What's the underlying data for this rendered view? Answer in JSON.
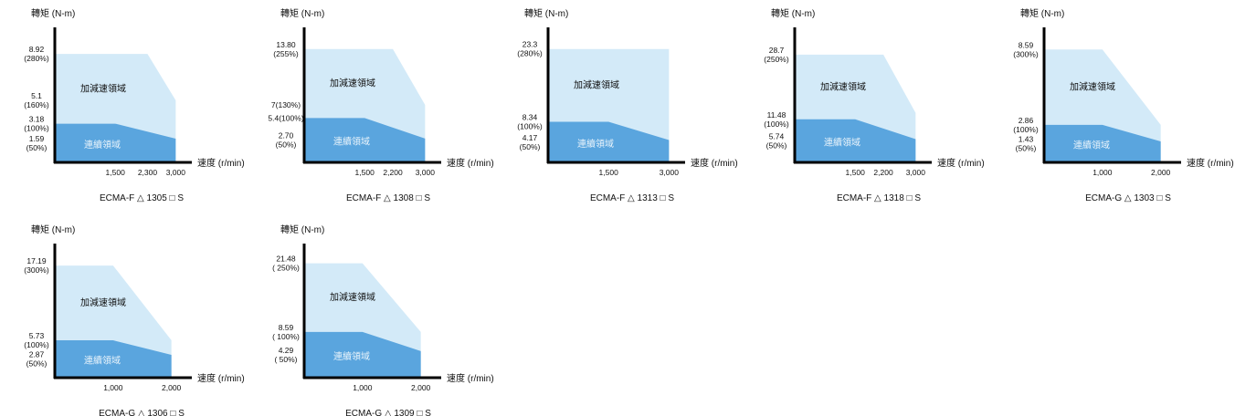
{
  "common": {
    "ylabel": "轉矩 (N-m)",
    "xlabel": "速度 (r/min)",
    "accel_region_label": "加減速領域",
    "continuous_region_label": "連續領域"
  },
  "colors": {
    "accel_region": "#d3eaf8",
    "continuous_region": "#5aa5de",
    "axis": "#000000"
  },
  "chart_data": [
    {
      "type": "area",
      "caption": "ECMA-F △ 1305 □ S",
      "xlabel": "速度 (r/min)",
      "ylabel": "轉矩 (N-m)",
      "x_ticks": [
        {
          "value": 1500,
          "label": "1,500"
        },
        {
          "value": 2300,
          "label": "2,300"
        },
        {
          "value": 3000,
          "label": "3,000"
        }
      ],
      "xlim": [
        0,
        3400
      ],
      "ylim": [
        0,
        10.8
      ],
      "y_ticks": [
        {
          "value": 8.92,
          "lines": [
            "8.92",
            "(280%)"
          ]
        },
        {
          "value": 5.1,
          "lines": [
            "5.1",
            "(160%)"
          ]
        },
        {
          "value": 3.18,
          "lines": [
            "3.18",
            "(100%)"
          ]
        },
        {
          "value": 1.59,
          "lines": [
            "1.59",
            "(50%)"
          ]
        }
      ],
      "series": [
        {
          "name": "加減速領域",
          "x": [
            0,
            2300,
            3000
          ],
          "y": [
            8.92,
            8.92,
            5.1
          ]
        },
        {
          "name": "連續領域",
          "x": [
            0,
            1500,
            3000
          ],
          "y": [
            3.18,
            3.18,
            1.95
          ]
        }
      ]
    },
    {
      "type": "area",
      "caption": "ECMA-F △ 1308 □ S",
      "xlabel": "速度 (r/min)",
      "ylabel": "轉矩 (N-m)",
      "x_ticks": [
        {
          "value": 1500,
          "label": "1,500"
        },
        {
          "value": 2200,
          "label": "2,200"
        },
        {
          "value": 3000,
          "label": "3,000"
        }
      ],
      "xlim": [
        0,
        3400
      ],
      "ylim": [
        0,
        16.0
      ],
      "y_ticks": [
        {
          "value": 13.8,
          "lines": [
            "13.80",
            "(255%)"
          ]
        },
        {
          "value": 7.0,
          "lines": [
            "7(130%)"
          ]
        },
        {
          "value": 5.4,
          "lines": [
            "5.4(100%)"
          ]
        },
        {
          "value": 2.7,
          "lines": [
            "2.70",
            "(50%)"
          ]
        }
      ],
      "series": [
        {
          "name": "加減速領域",
          "x": [
            0,
            2200,
            3000
          ],
          "y": [
            13.8,
            13.8,
            7.0
          ]
        },
        {
          "name": "連續領域",
          "x": [
            0,
            1500,
            3000
          ],
          "y": [
            5.4,
            5.4,
            2.9
          ]
        }
      ]
    },
    {
      "type": "area",
      "caption": "ECMA-F △ 1313 □ S",
      "xlabel": "速度 (r/min)",
      "ylabel": "轉矩 (N-m)",
      "x_ticks": [
        {
          "value": 1500,
          "label": "1,500"
        },
        {
          "value": 3000,
          "label": "3,000"
        }
      ],
      "xlim": [
        0,
        3400
      ],
      "ylim": [
        0,
        27.0
      ],
      "y_ticks": [
        {
          "value": 23.3,
          "lines": [
            "23.3",
            "(280%)"
          ]
        },
        {
          "value": 8.34,
          "lines": [
            "8.34",
            "(100%)"
          ]
        },
        {
          "value": 4.17,
          "lines": [
            "4.17",
            "(50%)"
          ]
        }
      ],
      "series": [
        {
          "name": "加減速領域",
          "x": [
            0,
            3000
          ],
          "y": [
            23.3,
            23.3
          ]
        },
        {
          "name": "連續領域",
          "x": [
            0,
            1500,
            3000
          ],
          "y": [
            8.34,
            8.34,
            4.6
          ]
        }
      ]
    },
    {
      "type": "area",
      "caption": "ECMA-F △ 1318 □ S",
      "xlabel": "速度 (r/min)",
      "ylabel": "轉矩 (N-m)",
      "x_ticks": [
        {
          "value": 1500,
          "label": "1,500"
        },
        {
          "value": 2200,
          "label": "2,200"
        },
        {
          "value": 3000,
          "label": "3,000"
        }
      ],
      "xlim": [
        0,
        3400
      ],
      "ylim": [
        0,
        35.0
      ],
      "y_ticks": [
        {
          "value": 28.7,
          "lines": [
            "28.7",
            "(250%)"
          ]
        },
        {
          "value": 11.48,
          "lines": [
            "11.48",
            "(100%)"
          ]
        },
        {
          "value": 5.74,
          "lines": [
            "5.74",
            "(50%)"
          ]
        }
      ],
      "series": [
        {
          "name": "加減速領域",
          "x": [
            0,
            2200,
            3000
          ],
          "y": [
            28.7,
            28.7,
            13.2
          ]
        },
        {
          "name": "連續領域",
          "x": [
            0,
            1500,
            3000
          ],
          "y": [
            11.48,
            11.48,
            6.2
          ]
        }
      ]
    },
    {
      "type": "area",
      "caption": "ECMA-G △ 1303 □ S",
      "xlabel": "速度 (r/min)",
      "ylabel": "轉矩 (N-m)",
      "x_ticks": [
        {
          "value": 1000,
          "label": "1,000"
        },
        {
          "value": 2000,
          "label": "2,000"
        }
      ],
      "xlim": [
        0,
        2350
      ],
      "ylim": [
        0,
        10.0
      ],
      "y_ticks": [
        {
          "value": 8.59,
          "lines": [
            "8.59",
            "(300%)"
          ]
        },
        {
          "value": 2.86,
          "lines": [
            "2.86",
            "(100%)"
          ]
        },
        {
          "value": 1.43,
          "lines": [
            "1.43",
            "(50%)"
          ]
        }
      ],
      "series": [
        {
          "name": "加減速領域",
          "x": [
            0,
            1000,
            2000
          ],
          "y": [
            8.59,
            8.59,
            2.86
          ]
        },
        {
          "name": "連續領域",
          "x": [
            0,
            1000,
            2000
          ],
          "y": [
            2.86,
            2.86,
            1.6
          ]
        }
      ]
    },
    {
      "type": "area",
      "caption": "ECMA-G △ 1306 □ S",
      "xlabel": "速度 (r/min)",
      "ylabel": "轉矩 (N-m)",
      "x_ticks": [
        {
          "value": 1000,
          "label": "1,000"
        },
        {
          "value": 2000,
          "label": "2,000"
        }
      ],
      "xlim": [
        0,
        2350
      ],
      "ylim": [
        0,
        20.0
      ],
      "y_ticks": [
        {
          "value": 17.19,
          "lines": [
            "17.19",
            "(300%)"
          ]
        },
        {
          "value": 5.73,
          "lines": [
            "5.73",
            "(100%)"
          ]
        },
        {
          "value": 2.87,
          "lines": [
            "2.87",
            "(50%)"
          ]
        }
      ],
      "series": [
        {
          "name": "加減速領域",
          "x": [
            0,
            1000,
            2000
          ],
          "y": [
            17.19,
            17.19,
            5.73
          ]
        },
        {
          "name": "連續領域",
          "x": [
            0,
            1000,
            2000
          ],
          "y": [
            5.73,
            5.73,
            3.5
          ]
        }
      ]
    },
    {
      "type": "area",
      "caption": "ECMA-G △ 1309 □ S",
      "xlabel": "速度 (r/min)",
      "ylabel": "轉矩 (N-m)",
      "x_ticks": [
        {
          "value": 1000,
          "label": "1,000"
        },
        {
          "value": 2000,
          "label": "2,000"
        }
      ],
      "xlim": [
        0,
        2350
      ],
      "ylim": [
        0,
        24.5
      ],
      "y_ticks": [
        {
          "value": 21.48,
          "lines": [
            "21.48",
            "( 250%)"
          ]
        },
        {
          "value": 8.59,
          "lines": [
            "8.59",
            "( 100%)"
          ]
        },
        {
          "value": 4.29,
          "lines": [
            "4.29",
            "( 50%)"
          ]
        }
      ],
      "series": [
        {
          "name": "加減速領域",
          "x": [
            0,
            1000,
            2000
          ],
          "y": [
            21.48,
            21.48,
            8.59
          ]
        },
        {
          "name": "連續領域",
          "x": [
            0,
            1000,
            2000
          ],
          "y": [
            8.59,
            8.59,
            5.0
          ]
        }
      ]
    }
  ]
}
